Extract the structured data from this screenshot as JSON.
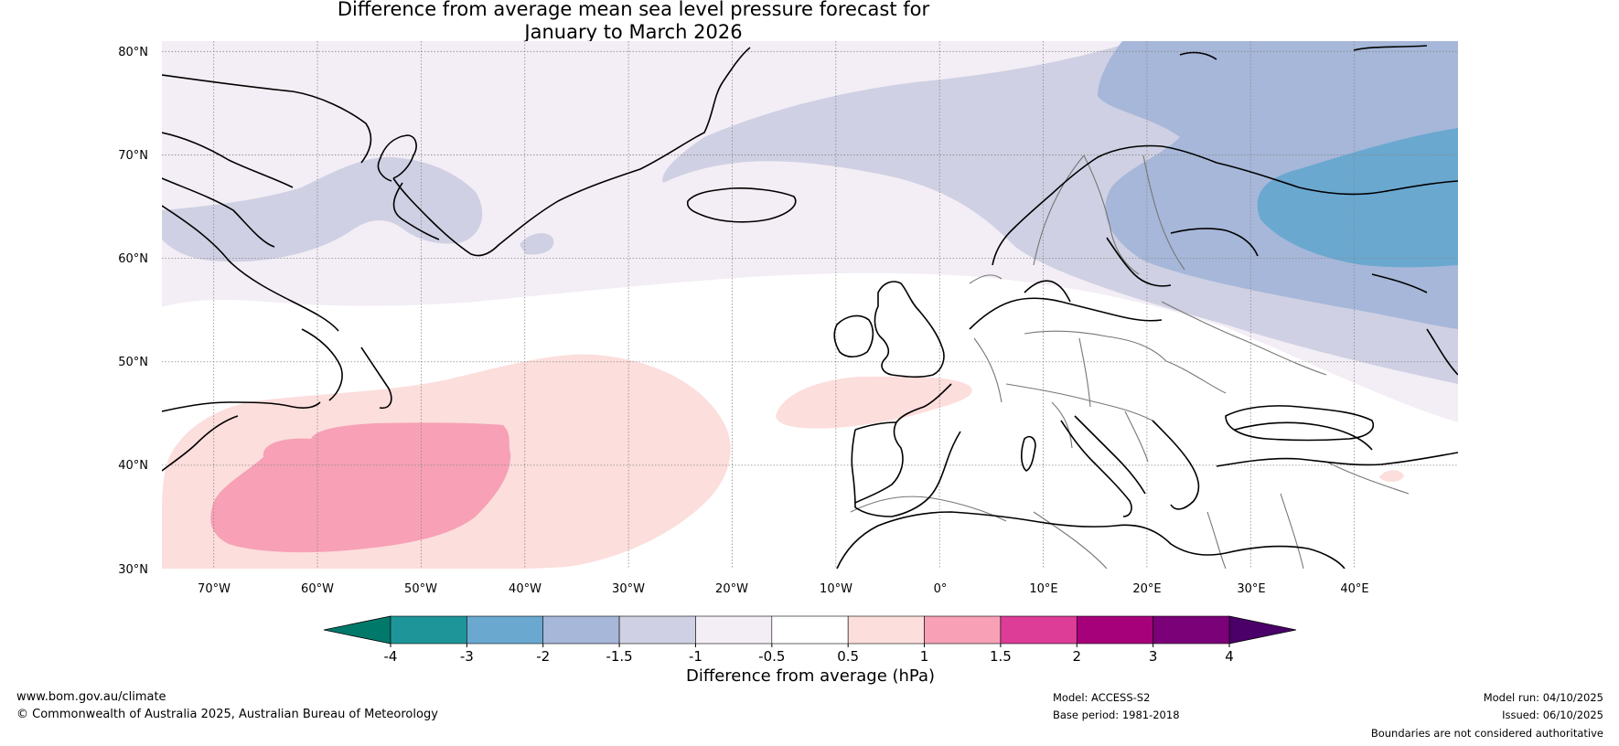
{
  "title": {
    "line1": "Difference from average mean sea level pressure forecast for",
    "line2": "January to March 2026"
  },
  "map": {
    "lat_labels": [
      "80°N",
      "70°N",
      "60°N",
      "50°N",
      "40°N",
      "30°N"
    ],
    "lon_labels": [
      "70°W",
      "60°W",
      "50°W",
      "40°W",
      "30°W",
      "20°W",
      "10°W",
      "0°",
      "10°E",
      "20°E",
      "30°E",
      "40°E"
    ],
    "extent": {
      "lon_min": -75,
      "lon_max": 50,
      "lat_min": 30,
      "lat_max": 81
    }
  },
  "colorbar": {
    "ticks": [
      "-4",
      "-3",
      "-2",
      "-1.5",
      "-1",
      "-0.5",
      "0.5",
      "1",
      "1.5",
      "2",
      "3",
      "4"
    ],
    "colors": [
      "#1e9599",
      "#6aa8d0",
      "#a6b7d9",
      "#cfd0e3",
      "#f3edf5",
      "#ffffff",
      "#fcdedc",
      "#f7a0b6",
      "#dd3c97",
      "#a6007a",
      "#7a0177"
    ],
    "low_extend_color": "#00796b",
    "high_extend_color": "#4a0068",
    "label": "Difference from average (hPa)"
  },
  "footer": {
    "website": "www.bom.gov.au/climate",
    "copyright": "© Commonwealth of Australia 2025, Australian Bureau of Meteorology",
    "model": "Model: ACCESS-S2",
    "base_period": "Base period: 1981-2018",
    "model_run": "Model run: 04/10/2025",
    "issued": "Issued: 06/10/2025",
    "disclaimer": "Boundaries are not considered authoritative"
  },
  "colors": {
    "coast": "#000000",
    "borders": "#777777",
    "gridlines": "#888888"
  }
}
